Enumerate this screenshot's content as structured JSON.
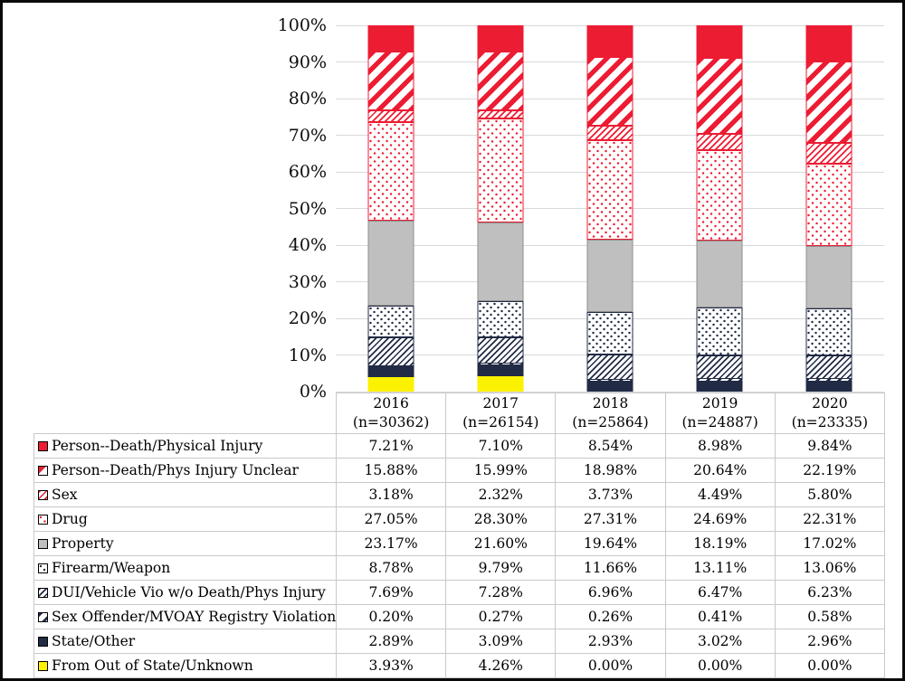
{
  "colors": {
    "red": "#EC1C33",
    "navy": "#222B45",
    "gray": "#BFBFBF",
    "grayBorder": "#8F8F8F",
    "yellow": "#FCF200",
    "grid": "#D9D9D9",
    "tableBorder": "#C9C9C9",
    "text": "#000000"
  },
  "chart_data": {
    "type": "bar",
    "stacked": true,
    "orientation": "vertical",
    "grid": true,
    "legend_position": "table-left-column",
    "y_axis": {
      "min": 0,
      "max": 100,
      "step": 10,
      "suffix": "%"
    },
    "ylim": [
      0,
      100
    ],
    "value_format": "percent-2-decimals",
    "categories": [
      {
        "year": "2016",
        "n": "(n=30362)"
      },
      {
        "year": "2017",
        "n": "(n=26154)"
      },
      {
        "year": "2018",
        "n": "(n=25864)"
      },
      {
        "year": "2019",
        "n": "(n=24887)"
      },
      {
        "year": "2020",
        "n": "(n=23335)"
      }
    ],
    "series": [
      {
        "name": "Person--Death/Physical Injury",
        "pattern": "red-solid",
        "values": [
          7.21,
          7.1,
          8.54,
          8.98,
          9.84
        ]
      },
      {
        "name": "Person--Death/Phys Injury Unclear",
        "pattern": "red-diag-wide",
        "values": [
          15.88,
          15.99,
          18.98,
          20.64,
          22.19
        ]
      },
      {
        "name": "Sex",
        "pattern": "red-diag-thin",
        "values": [
          3.18,
          2.32,
          3.73,
          4.49,
          5.8
        ]
      },
      {
        "name": "Drug",
        "pattern": "red-dots",
        "values": [
          27.05,
          28.3,
          27.31,
          24.69,
          22.31
        ]
      },
      {
        "name": "Property",
        "pattern": "gray-solid",
        "values": [
          23.17,
          21.6,
          19.64,
          18.19,
          17.02
        ]
      },
      {
        "name": "Firearm/Weapon",
        "pattern": "navy-dots",
        "values": [
          8.78,
          9.79,
          11.66,
          13.11,
          13.06
        ]
      },
      {
        "name": "DUI/Vehicle Vio w/o Death/Phys Injury",
        "pattern": "navy-diag-thin",
        "values": [
          7.69,
          7.28,
          6.96,
          6.47,
          6.23
        ]
      },
      {
        "name": "Sex Offender/MVOAY Registry Violation",
        "pattern": "navy-diag-wide",
        "values": [
          0.2,
          0.27,
          0.26,
          0.41,
          0.58
        ]
      },
      {
        "name": "State/Other",
        "pattern": "navy-solid",
        "values": [
          2.89,
          3.09,
          2.93,
          3.02,
          2.96
        ]
      },
      {
        "name": "From Out of State/Unknown",
        "pattern": "yellow-solid",
        "values": [
          3.93,
          4.26,
          0.0,
          0.0,
          0.0
        ]
      }
    ]
  }
}
